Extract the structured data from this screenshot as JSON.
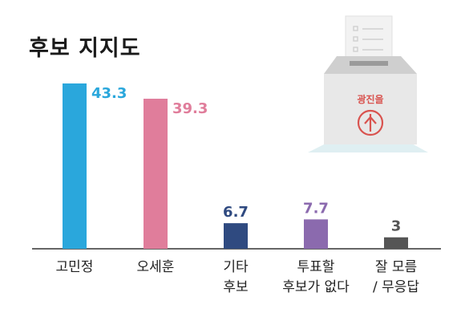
{
  "chart_data": {
    "type": "bar",
    "title": "후보 지지도",
    "categories": [
      [
        "고민정"
      ],
      [
        "오세훈"
      ],
      [
        "기타",
        "후보"
      ],
      [
        "투표할",
        "후보가 없다"
      ],
      [
        "잘 모름",
        "/ 무응답"
      ]
    ],
    "values": [
      43.3,
      39.3,
      6.7,
      7.7,
      3
    ],
    "value_labels": [
      "43.3",
      "39.3",
      "6.7",
      "7.7",
      "3"
    ],
    "colors": [
      "#2aa7dc",
      "#e07d9b",
      "#2f4a80",
      "#8b6aae",
      "#555555"
    ],
    "ylim": [
      0,
      45
    ],
    "grid": false
  },
  "illustration": {
    "ballot_box_label": "광진을",
    "icon": "ballot-box-icon",
    "colors": {
      "box": "#e6e6e6",
      "stamp": "#d9534f",
      "shadow": "#dfeff2"
    }
  }
}
